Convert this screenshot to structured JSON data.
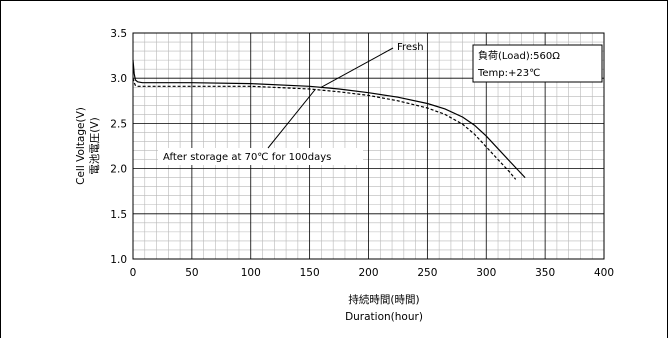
{
  "chart_data": {
    "type": "line",
    "title": "",
    "xlabel": "持続時間(時間)",
    "xlabel_sub": "Duration(hour)",
    "ylabel": "Cell Voltage(V)",
    "ylabel_sub": "電池電圧(V)",
    "xlim": [
      0,
      400
    ],
    "ylim": [
      1.0,
      3.5
    ],
    "xticks": [
      0,
      50,
      100,
      150,
      200,
      250,
      300,
      350,
      400
    ],
    "yticks": [
      1.0,
      1.5,
      2.0,
      2.5,
      3.0,
      3.5
    ],
    "ytick_labels": [
      "1.0",
      "1.5",
      "2.0",
      "2.5",
      "3.0",
      "3.5"
    ],
    "grid": true,
    "series": [
      {
        "name": "Fresh",
        "style": "solid",
        "color": "#000000",
        "x": [
          0,
          1,
          2,
          4,
          8,
          15,
          30,
          50,
          100,
          150,
          175,
          200,
          225,
          250,
          265,
          280,
          290,
          300,
          310,
          320,
          333
        ],
        "y": [
          3.2,
          3.05,
          2.98,
          2.96,
          2.95,
          2.95,
          2.95,
          2.95,
          2.94,
          2.91,
          2.88,
          2.84,
          2.79,
          2.72,
          2.66,
          2.57,
          2.48,
          2.36,
          2.22,
          2.08,
          1.9
        ]
      },
      {
        "name": "After storage at 70℃ for 100days",
        "style": "dashed",
        "color": "#000000",
        "x": [
          0,
          1,
          2,
          4,
          8,
          15,
          30,
          50,
          100,
          150,
          175,
          200,
          225,
          250,
          265,
          280,
          290,
          300,
          310,
          320,
          325
        ],
        "y": [
          3.0,
          2.95,
          2.92,
          2.91,
          2.91,
          2.91,
          2.91,
          2.91,
          2.91,
          2.88,
          2.85,
          2.81,
          2.75,
          2.67,
          2.6,
          2.49,
          2.38,
          2.24,
          2.1,
          1.96,
          1.88
        ]
      }
    ],
    "annotations": [
      {
        "text": "Fresh",
        "target": "Fresh"
      },
      {
        "text": "After storage at 70℃ for 100days",
        "target": "After storage at 70℃ for 100days"
      }
    ],
    "infobox": {
      "line1": "負荷(Load):560Ω",
      "line2": "Temp:+23℃"
    }
  }
}
